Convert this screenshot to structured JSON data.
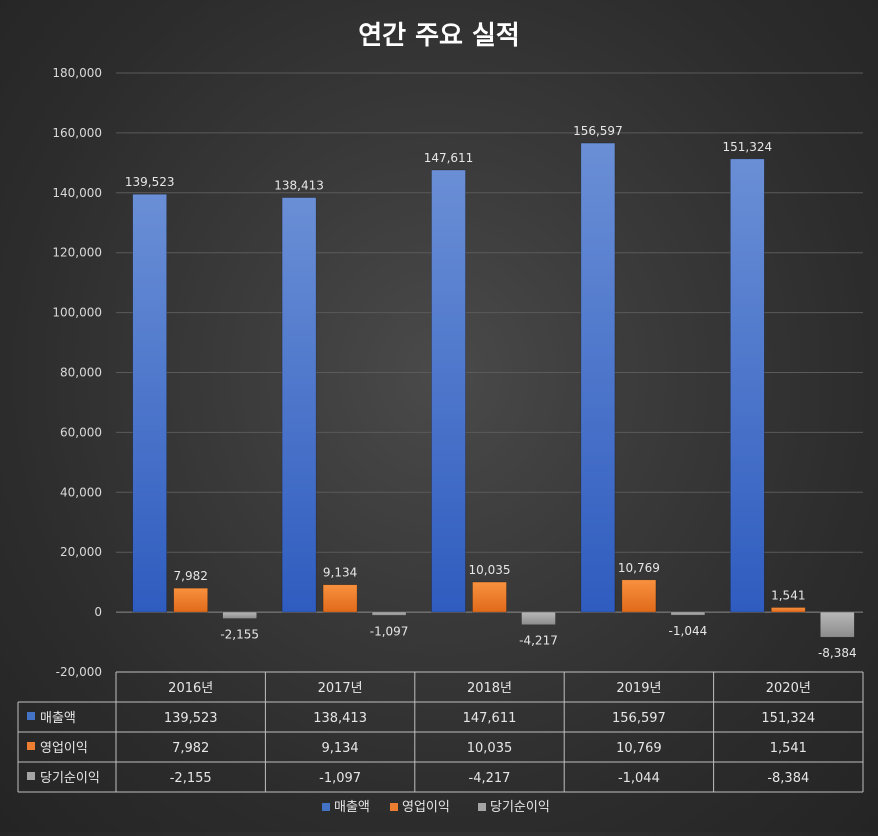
{
  "chart_data": {
    "type": "bar",
    "title": "연간 주요 실적",
    "categories": [
      "2016년",
      "2017년",
      "2018년",
      "2019년",
      "2020년"
    ],
    "series": [
      {
        "name": "매출액",
        "color": "#4472c4",
        "values": [
          139523,
          138413,
          147611,
          156597,
          151324
        ],
        "labels": [
          "139,523",
          "138,413",
          "147,611",
          "156,597",
          "151,324"
        ]
      },
      {
        "name": "영업이익",
        "color": "#ed7d31",
        "values": [
          7982,
          9134,
          10035,
          10769,
          1541
        ],
        "labels": [
          "7,982",
          "9,134",
          "10,035",
          "10,769",
          "1,541"
        ]
      },
      {
        "name": "당기순이익",
        "color": "#a5a5a5",
        "values": [
          -2155,
          -1097,
          -4217,
          -1044,
          -8384
        ],
        "labels": [
          "-2,155",
          "-1,097",
          "-4,217",
          "-1,044",
          "-8,384"
        ]
      }
    ],
    "ylim": [
      -20000,
      180000
    ],
    "yticks": [
      180000,
      160000,
      140000,
      120000,
      100000,
      80000,
      60000,
      40000,
      20000,
      0,
      -20000
    ],
    "ytick_labels": [
      "180,000",
      "160,000",
      "140,000",
      "120,000",
      "100,000",
      "80,000",
      "60,000",
      "40,000",
      "20,000",
      "0",
      "-20,000"
    ],
    "grid": true,
    "data_table": true,
    "legend": "bottom"
  }
}
